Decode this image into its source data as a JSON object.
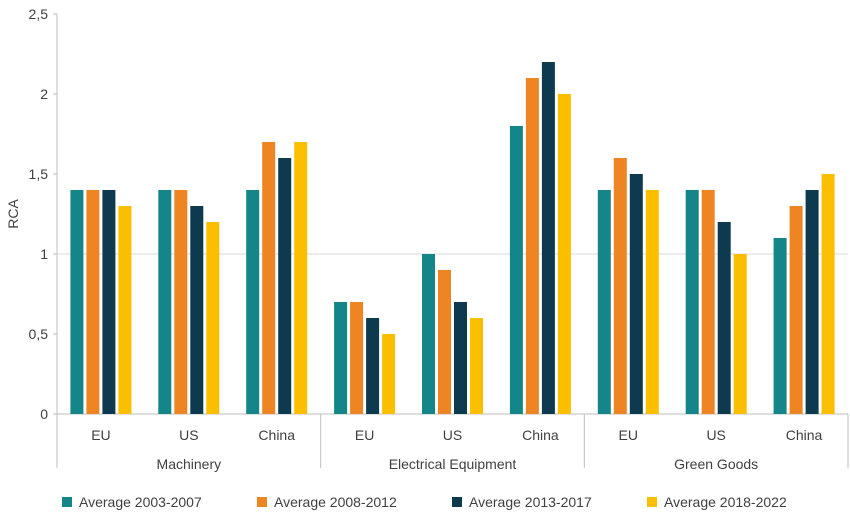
{
  "chart_data": {
    "type": "bar",
    "ylabel": "RCA",
    "ylim": [
      0,
      2.5
    ],
    "yticks": [
      0,
      0.5,
      1,
      1.5,
      2,
      2.5
    ],
    "ytick_labels": [
      "0",
      "0,5",
      "1",
      "1,5",
      "2",
      "2,5"
    ],
    "groups": [
      {
        "label": "Machinery",
        "categories": [
          "EU",
          "US",
          "China"
        ]
      },
      {
        "label": "Electrical Equipment",
        "categories": [
          "EU",
          "US",
          "China"
        ]
      },
      {
        "label": "Green Goods",
        "categories": [
          "EU",
          "US",
          "China"
        ]
      }
    ],
    "series": [
      {
        "name": "Average 2003-2007",
        "color": "#14868A",
        "values": [
          1.4,
          1.4,
          1.4,
          0.7,
          1.0,
          1.8,
          1.4,
          1.4,
          1.1
        ]
      },
      {
        "name": "Average 2008-2012",
        "color": "#EE8522",
        "values": [
          1.4,
          1.4,
          1.7,
          0.7,
          0.9,
          2.1,
          1.6,
          1.4,
          1.3
        ]
      },
      {
        "name": "Average 2013-2017",
        "color": "#0E3A50",
        "values": [
          1.4,
          1.3,
          1.6,
          0.6,
          0.7,
          2.2,
          1.5,
          1.2,
          1.4
        ]
      },
      {
        "name": "Average 2018-2022",
        "color": "#FBBF00",
        "values": [
          1.3,
          1.2,
          1.7,
          0.5,
          0.6,
          2.0,
          1.4,
          1.0,
          1.5
        ]
      }
    ],
    "grid": "horizontal-at-1",
    "legend": "bottom"
  }
}
